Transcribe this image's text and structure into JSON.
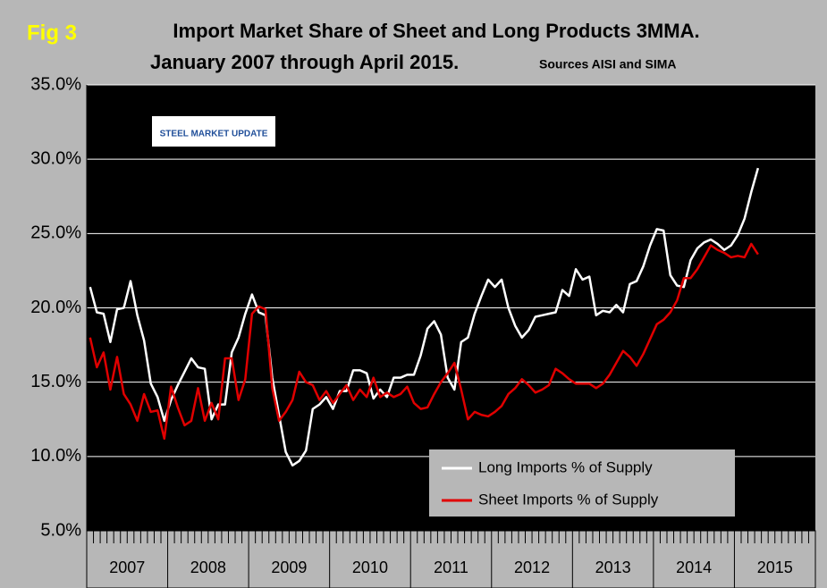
{
  "chart_data": {
    "type": "line",
    "figure_label": "Fig 3",
    "title": "Import Market Share of Sheet and Long Products 3MMA.",
    "subtitle": "January 2007 through April 2015.",
    "source": "Sources AISI and SIMA",
    "logo": "STEEL MARKET UPDATE",
    "year_groups": [
      "2007",
      "2008",
      "2009",
      "2010",
      "2011",
      "2012",
      "2013",
      "2014",
      "2015"
    ],
    "ylim": [
      5,
      35
    ],
    "yticks": [
      {
        "value": 5,
        "label": "5.0%"
      },
      {
        "value": 10,
        "label": "10.0%"
      },
      {
        "value": 15,
        "label": "15.0%"
      },
      {
        "value": 20,
        "label": "20.0%"
      },
      {
        "value": 25,
        "label": "25.0%"
      },
      {
        "value": 30,
        "label": "30.0%"
      },
      {
        "value": 35,
        "label": "35.0%"
      }
    ],
    "grid": true,
    "legend": "lower-right",
    "series": [
      {
        "name": "Long Imports % of Supply",
        "color": "#ffffff",
        "values": [
          21.4,
          19.7,
          19.6,
          17.7,
          19.9,
          20.0,
          21.8,
          19.5,
          17.8,
          14.9,
          14.0,
          12.4,
          13.8,
          14.8,
          15.7,
          16.6,
          16.0,
          15.9,
          12.5,
          13.5,
          13.5,
          17.0,
          18.0,
          19.6,
          20.9,
          19.7,
          19.5,
          15.3,
          12.8,
          10.3,
          9.4,
          9.7,
          10.4,
          13.2,
          13.5,
          14.0,
          13.2,
          14.4,
          14.4,
          15.8,
          15.8,
          15.6,
          13.9,
          14.5,
          14.0,
          15.3,
          15.3,
          15.5,
          15.5,
          16.8,
          18.6,
          19.1,
          18.2,
          15.3,
          14.5,
          17.7,
          18.0,
          19.6,
          20.8,
          21.9,
          21.4,
          21.9,
          20.0,
          18.8,
          18.0,
          18.5,
          19.4,
          19.5,
          19.6,
          19.7,
          21.2,
          20.8,
          22.6,
          21.9,
          22.1,
          19.5,
          19.8,
          19.7,
          20.2,
          19.7,
          21.6,
          21.8,
          22.8,
          24.2,
          25.3,
          25.2,
          22.2,
          21.5,
          21.4,
          23.2,
          24.0,
          24.4,
          24.6,
          24.3,
          23.9,
          24.2,
          24.9,
          26.0,
          27.8,
          29.4
        ]
      },
      {
        "name": "Sheet Imports % of Supply",
        "color": "#e00000",
        "values": [
          18.0,
          16.0,
          17.0,
          14.5,
          16.7,
          14.2,
          13.5,
          12.4,
          14.2,
          13.0,
          13.1,
          11.2,
          14.7,
          13.3,
          12.1,
          12.4,
          14.6,
          12.4,
          13.6,
          12.5,
          16.6,
          16.6,
          13.8,
          15.2,
          19.6,
          20.1,
          19.9,
          14.6,
          12.4,
          13.0,
          13.8,
          15.7,
          15.0,
          14.8,
          13.8,
          14.4,
          13.6,
          14.2,
          14.8,
          13.8,
          14.5,
          14.0,
          15.3,
          14.0,
          14.3,
          14.0,
          14.2,
          14.7,
          13.6,
          13.2,
          13.3,
          14.2,
          15.0,
          15.6,
          16.3,
          14.5,
          12.5,
          13.0,
          12.8,
          12.7,
          13.0,
          13.4,
          14.2,
          14.6,
          15.2,
          14.8,
          14.3,
          14.5,
          14.8,
          15.9,
          15.6,
          15.2,
          14.9,
          14.9,
          14.9,
          14.6,
          14.9,
          15.5,
          16.3,
          17.1,
          16.7,
          16.1,
          16.9,
          17.9,
          18.9,
          19.2,
          19.7,
          20.5,
          22.0,
          22.0,
          22.6,
          23.4,
          24.2,
          23.9,
          23.7,
          23.4,
          23.5,
          23.4,
          24.3,
          23.6
        ]
      }
    ]
  }
}
